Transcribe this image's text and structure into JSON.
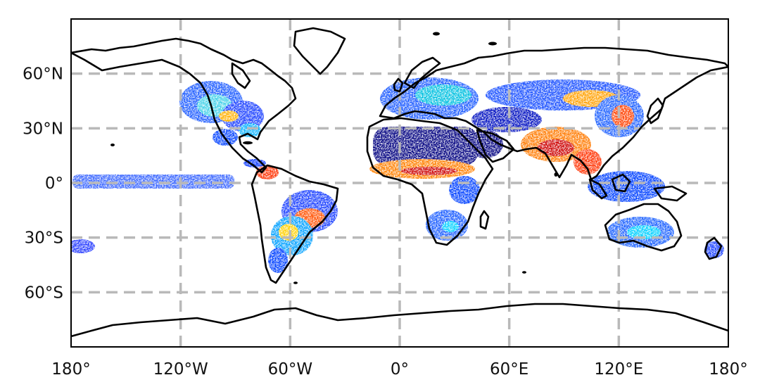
{
  "map": {
    "projection": "plate-carree",
    "extent": {
      "lon": [
        -180,
        180
      ],
      "lat": [
        -90,
        90
      ]
    },
    "gridlines": {
      "lon": [
        -120,
        -60,
        0,
        60,
        120
      ],
      "lat": [
        60,
        30,
        0,
        -30,
        -60
      ],
      "style": "dashed",
      "color": "#b9b9b9"
    },
    "x_ticks": [
      {
        "lon": -180,
        "label": "180°"
      },
      {
        "lon": -120,
        "label": "120°W"
      },
      {
        "lon": -60,
        "label": "60°W"
      },
      {
        "lon": 0,
        "label": "0°"
      },
      {
        "lon": 60,
        "label": "60°E"
      },
      {
        "lon": 120,
        "label": "120°E"
      },
      {
        "lon": 180,
        "label": "180°"
      }
    ],
    "y_ticks": [
      {
        "lat": 60,
        "label": "60°N"
      },
      {
        "lat": 30,
        "label": "30°N"
      },
      {
        "lat": 0,
        "label": "0°"
      },
      {
        "lat": -30,
        "label": "30°S"
      },
      {
        "lat": -60,
        "label": "60°S"
      }
    ],
    "colormap": [
      "#00007f",
      "#0000ff",
      "#007fff",
      "#00ffff",
      "#7fff7f",
      "#ffff00",
      "#ff7f00",
      "#ff0000",
      "#7f0000"
    ],
    "coastline_color": "#000000"
  }
}
